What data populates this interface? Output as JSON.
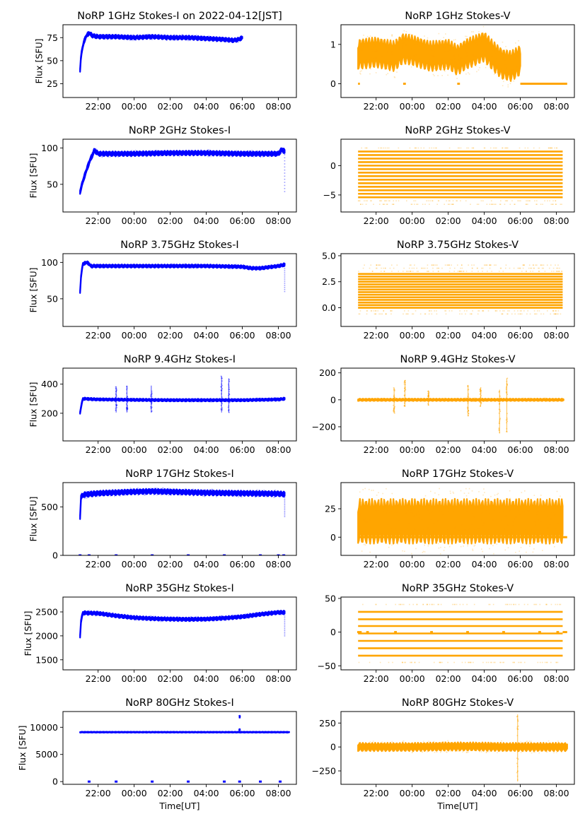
{
  "figure": {
    "layout": "7 rows x 2 columns",
    "colors": {
      "stokes_i": "#0000ff",
      "stokes_v": "#ffa500",
      "axes": "#000000",
      "background": "#ffffff"
    }
  },
  "chart_data": [
    {
      "type": "scatter",
      "panel": "1GHz-I",
      "title": "NoRP 1GHz Stokes-I on 2022-04-12[JST]",
      "xlabel": "",
      "ylabel": "Flux [SFU]",
      "xticks": [
        "22:00",
        "00:00",
        "02:00",
        "04:00",
        "06:00",
        "08:00"
      ],
      "xlim_hours": [
        20.05,
        33.0
      ],
      "yticks": [
        25,
        50,
        75
      ],
      "yticklabels": [
        "25",
        "50",
        "75"
      ],
      "ylim": [
        10,
        89
      ],
      "color": "#0000ff",
      "series": [
        {
          "name": "Stokes-I",
          "x_hours": [
            21.0,
            21.05,
            21.2,
            21.35,
            21.5,
            21.7,
            22.0,
            23.0,
            24.0,
            25.0,
            26.0,
            27.0,
            28.0,
            29.0,
            29.5,
            29.8,
            30.0
          ],
          "values": [
            40,
            55,
            70,
            77,
            80,
            77,
            76,
            76,
            75,
            76,
            75,
            75,
            74,
            73,
            72,
            73,
            75
          ],
          "spread": 2
        }
      ],
      "sparse": []
    },
    {
      "type": "scatter",
      "panel": "1GHz-V",
      "title": "NoRP 1GHz Stokes-V",
      "xlabel": "",
      "ylabel": "",
      "xticks": [
        "22:00",
        "00:00",
        "02:00",
        "04:00",
        "06:00",
        "08:00"
      ],
      "xlim_hours": [
        20.05,
        33.0
      ],
      "yticks": [
        0,
        1
      ],
      "yticklabels": [
        "0",
        "1"
      ],
      "ylim": [
        -0.35,
        1.5
      ],
      "color": "#ffa500",
      "series": [
        {
          "name": "Stokes-V",
          "x_hours": [
            21.0,
            22.0,
            23.0,
            23.5,
            24.0,
            25.0,
            26.0,
            26.5,
            27.0,
            28.0,
            28.5,
            29.0,
            29.5,
            30.0
          ],
          "values": [
            0.75,
            0.8,
            0.7,
            0.9,
            0.85,
            0.7,
            0.75,
            0.6,
            0.75,
            0.95,
            0.7,
            0.5,
            0.45,
            0.6
          ],
          "spread": 0.35
        }
      ],
      "baseline": {
        "value": 0,
        "segments_hours": [
          [
            21.0,
            21.1
          ],
          [
            23.5,
            23.65
          ],
          [
            26.5,
            26.65
          ],
          [
            30.0,
            32.6
          ]
        ]
      }
    },
    {
      "type": "scatter",
      "panel": "2GHz-I",
      "title": "NoRP 2GHz Stokes-I",
      "xlabel": "",
      "ylabel": "Flux [SFU]",
      "xticks": [
        "22:00",
        "00:00",
        "02:00",
        "04:00",
        "06:00",
        "08:00"
      ],
      "xlim_hours": [
        20.05,
        33.0
      ],
      "yticks": [
        50,
        100
      ],
      "yticklabels": [
        "50",
        "100"
      ],
      "ylim": [
        12,
        112
      ],
      "color": "#0000ff",
      "series": [
        {
          "name": "Stokes-I",
          "x_hours": [
            21.0,
            21.2,
            21.5,
            21.8,
            22.0,
            24.0,
            26.0,
            28.0,
            30.0,
            32.0,
            32.2,
            32.35
          ],
          "values": [
            40,
            58,
            80,
            97,
            92,
            92,
            93,
            93,
            92,
            92,
            98,
            95
          ],
          "spread": 3
        }
      ],
      "sparse": [
        {
          "x_hours": 32.35,
          "from": 40,
          "to": 95
        }
      ]
    },
    {
      "type": "scatter",
      "panel": "2GHz-V",
      "title": "NoRP 2GHz Stokes-V",
      "xlabel": "",
      "ylabel": "",
      "xticks": [
        "22:00",
        "00:00",
        "02:00",
        "04:00",
        "06:00",
        "08:00"
      ],
      "xlim_hours": [
        20.05,
        33.0
      ],
      "yticks": [
        -5,
        0
      ],
      "yticklabels": [
        "−5",
        "0"
      ],
      "ylim": [
        -7.9,
        4.5
      ],
      "color": "#ffa500",
      "quantized_levels": [
        -5.4,
        -4.8,
        -4.2,
        -3.6,
        -3.0,
        -2.4,
        -1.8,
        -1.2,
        -0.6,
        0.0,
        0.6,
        1.2,
        1.8,
        2.4
      ],
      "x_span_hours": [
        21.0,
        32.35
      ],
      "faint_levels": [
        -6.6,
        -6.0,
        3.0
      ]
    },
    {
      "type": "scatter",
      "panel": "3.75GHz-I",
      "title": "NoRP 3.75GHz Stokes-I",
      "xlabel": "",
      "ylabel": "Flux [SFU]",
      "xticks": [
        "22:00",
        "00:00",
        "02:00",
        "04:00",
        "06:00",
        "08:00"
      ],
      "xlim_hours": [
        20.05,
        33.0
      ],
      "yticks": [
        50,
        100
      ],
      "yticklabels": [
        "50",
        "100"
      ],
      "ylim": [
        12,
        112
      ],
      "color": "#0000ff",
      "series": [
        {
          "name": "Stokes-I",
          "x_hours": [
            21.0,
            21.05,
            21.15,
            21.4,
            21.6,
            22.0,
            24.0,
            26.0,
            28.0,
            30.0,
            30.5,
            31.0,
            32.0,
            32.35
          ],
          "values": [
            60,
            80,
            98,
            100,
            95,
            95,
            95,
            95,
            95,
            94,
            92,
            92,
            95,
            97
          ],
          "spread": 2
        }
      ],
      "sparse": [
        {
          "x_hours": 32.35,
          "from": 60,
          "to": 97
        }
      ]
    },
    {
      "type": "scatter",
      "panel": "3.75GHz-V",
      "title": "NoRP 3.75GHz Stokes-V",
      "xlabel": "",
      "ylabel": "",
      "xticks": [
        "22:00",
        "00:00",
        "02:00",
        "04:00",
        "06:00",
        "08:00"
      ],
      "xlim_hours": [
        20.05,
        33.0
      ],
      "yticks": [
        0.0,
        2.5,
        5.0
      ],
      "yticklabels": [
        "0.0",
        "2.5",
        "5.0"
      ],
      "ylim": [
        -1.8,
        5.2
      ],
      "color": "#ffa500",
      "quantized_levels": [
        0.0,
        0.25,
        0.5,
        0.75,
        1.0,
        1.25,
        1.5,
        1.75,
        2.0,
        2.25,
        2.5,
        2.75,
        3.0,
        3.25
      ],
      "x_span_hours": [
        21.0,
        32.35
      ],
      "faint_levels": [
        -0.3,
        -0.6,
        3.5,
        3.8,
        4.1
      ]
    },
    {
      "type": "scatter",
      "panel": "9.4GHz-I",
      "title": "NoRP 9.4GHz Stokes-I",
      "xlabel": "",
      "ylabel": "Flux [SFU]",
      "xticks": [
        "22:00",
        "00:00",
        "02:00",
        "04:00",
        "06:00",
        "08:00"
      ],
      "xlim_hours": [
        20.05,
        33.0
      ],
      "yticks": [
        200,
        400
      ],
      "yticklabels": [
        "200",
        "400"
      ],
      "ylim": [
        10,
        510
      ],
      "color": "#0000ff",
      "series": [
        {
          "name": "Stokes-I",
          "x_hours": [
            21.0,
            21.05,
            21.15,
            22.0,
            24.0,
            26.0,
            28.0,
            30.0,
            32.0,
            32.35
          ],
          "values": [
            205,
            240,
            300,
            295,
            292,
            290,
            290,
            290,
            295,
            300
          ],
          "spread": 8
        }
      ],
      "spikes": [
        {
          "x_hours": 23.0,
          "peak": 385
        },
        {
          "x_hours": 23.6,
          "peak": 390
        },
        {
          "x_hours": 24.95,
          "peak": 390
        },
        {
          "x_hours": 28.85,
          "peak": 455
        },
        {
          "x_hours": 29.25,
          "peak": 440
        }
      ]
    },
    {
      "type": "scatter",
      "panel": "9.4GHz-V",
      "title": "NoRP 9.4GHz Stokes-V",
      "xlabel": "",
      "ylabel": "",
      "xticks": [
        "22:00",
        "00:00",
        "02:00",
        "04:00",
        "06:00",
        "08:00"
      ],
      "xlim_hours": [
        20.05,
        33.0
      ],
      "yticks": [
        -200,
        0,
        200
      ],
      "yticklabels": [
        "−200",
        "0",
        "200"
      ],
      "ylim": [
        -305,
        235
      ],
      "color": "#ffa500",
      "series": [
        {
          "name": "Stokes-V",
          "x_hours": [
            21.0,
            32.4
          ],
          "values": [
            0,
            0
          ],
          "spread": 8
        }
      ],
      "spikes": [
        {
          "x_hours": 23.0,
          "peak": 90,
          "low": -100
        },
        {
          "x_hours": 23.6,
          "peak": 145,
          "low": -50
        },
        {
          "x_hours": 24.9,
          "peak": 70,
          "low": -40
        },
        {
          "x_hours": 27.1,
          "peak": 110,
          "low": -120
        },
        {
          "x_hours": 27.8,
          "peak": 90,
          "low": -50
        },
        {
          "x_hours": 28.85,
          "peak": 75,
          "low": -250
        },
        {
          "x_hours": 29.25,
          "peak": 160,
          "low": -240
        }
      ]
    },
    {
      "type": "scatter",
      "panel": "17GHz-I",
      "title": "NoRP 17GHz Stokes-I",
      "xlabel": "",
      "ylabel": "Flux [SFU]",
      "xticks": [
        "22:00",
        "00:00",
        "02:00",
        "04:00",
        "06:00",
        "08:00"
      ],
      "xlim_hours": [
        20.05,
        33.0
      ],
      "yticks": [
        0,
        500
      ],
      "yticklabels": [
        "0",
        "500"
      ],
      "ylim": [
        0,
        750
      ],
      "color": "#0000ff",
      "series": [
        {
          "name": "Stokes-I",
          "x_hours": [
            21.0,
            21.05,
            21.2,
            22.0,
            24.0,
            25.0,
            26.0,
            28.0,
            30.0,
            32.0,
            32.35
          ],
          "values": [
            400,
            600,
            625,
            640,
            655,
            660,
            655,
            645,
            640,
            635,
            630
          ],
          "spread": 25
        }
      ],
      "zero_markers_hours": [
        21.0,
        21.5,
        23.0,
        25.0,
        27.0,
        29.0,
        31.0,
        32.0,
        32.3
      ],
      "sparse": [
        {
          "x_hours": 32.35,
          "from": 400,
          "to": 630
        }
      ]
    },
    {
      "type": "scatter",
      "panel": "17GHz-V",
      "title": "NoRP 17GHz Stokes-V",
      "xlabel": "",
      "ylabel": "",
      "xticks": [
        "22:00",
        "00:00",
        "02:00",
        "04:00",
        "06:00",
        "08:00"
      ],
      "xlim_hours": [
        20.05,
        33.0
      ],
      "yticks": [
        0,
        25
      ],
      "yticklabels": [
        "0",
        "25"
      ],
      "ylim": [
        -16,
        48
      ],
      "color": "#ffa500",
      "series": [
        {
          "name": "Stokes-V",
          "x_hours": [
            21.0,
            32.35
          ],
          "values": [
            14,
            14
          ],
          "spread": 18
        }
      ],
      "baseline": {
        "value": 0,
        "segments_hours": [
          [
            21.0,
            32.6
          ]
        ]
      }
    },
    {
      "type": "scatter",
      "panel": "35GHz-I",
      "title": "NoRP 35GHz Stokes-I",
      "xlabel": "",
      "ylabel": "Flux [SFU]",
      "xticks": [
        "22:00",
        "00:00",
        "02:00",
        "04:00",
        "06:00",
        "08:00"
      ],
      "xlim_hours": [
        20.05,
        33.0
      ],
      "yticks": [
        1500,
        2000,
        2500
      ],
      "yticklabels": [
        "1500",
        "2000",
        "2500"
      ],
      "ylim": [
        1290,
        2810
      ],
      "color": "#0000ff",
      "series": [
        {
          "name": "Stokes-I",
          "x_hours": [
            21.0,
            21.05,
            21.15,
            22.0,
            23.0,
            24.0,
            25.0,
            26.0,
            27.0,
            28.0,
            29.0,
            30.0,
            31.0,
            32.0,
            32.35
          ],
          "values": [
            2000,
            2300,
            2480,
            2470,
            2420,
            2380,
            2360,
            2350,
            2345,
            2350,
            2370,
            2400,
            2450,
            2490,
            2490
          ],
          "spread": 35
        }
      ],
      "sparse": [
        {
          "x_hours": 32.35,
          "from": 2000,
          "to": 2490
        }
      ]
    },
    {
      "type": "scatter",
      "panel": "35GHz-V",
      "title": "NoRP 35GHz Stokes-V",
      "xlabel": "",
      "ylabel": "",
      "xticks": [
        "22:00",
        "00:00",
        "02:00",
        "04:00",
        "06:00",
        "08:00"
      ],
      "xlim_hours": [
        20.05,
        33.0
      ],
      "yticks": [
        -50,
        0,
        50
      ],
      "yticklabels": [
        "−50",
        "0",
        "50"
      ],
      "ylim": [
        -56,
        52
      ],
      "color": "#ffa500",
      "quantized_levels": [
        -35,
        -24,
        -13,
        -2,
        9,
        19,
        30
      ],
      "x_span_hours": [
        21.0,
        32.35
      ],
      "faint_levels": [
        -45,
        41
      ],
      "baseline": {
        "value": 0,
        "segments_hours": [
          [
            20.95,
            21.2
          ],
          [
            21.45,
            21.6
          ],
          [
            23.0,
            23.15
          ],
          [
            25.0,
            25.15
          ],
          [
            27.0,
            27.15
          ],
          [
            29.0,
            29.15
          ],
          [
            31.0,
            31.15
          ],
          [
            32.0,
            32.15
          ],
          [
            32.35,
            32.6
          ]
        ]
      }
    },
    {
      "type": "scatter",
      "panel": "80GHz-I",
      "title": "NoRP 80GHz Stokes-I",
      "xlabel": "Time[UT]",
      "ylabel": "Flux [SFU]",
      "xticks": [
        "22:00",
        "00:00",
        "02:00",
        "04:00",
        "06:00",
        "08:00"
      ],
      "xlim_hours": [
        20.05,
        33.0
      ],
      "yticks": [
        0,
        5000,
        10000
      ],
      "yticklabels": [
        "0",
        "5000",
        "10000"
      ],
      "ylim": [
        -500,
        12900
      ],
      "color": "#0000ff",
      "series": [
        {
          "name": "Stokes-I",
          "x_hours": [
            21.0,
            32.6
          ],
          "values": [
            9100,
            9100
          ],
          "spread": 80
        }
      ],
      "zero_markers_hours": [
        21.5,
        23.0,
        25.0,
        27.0,
        29.0,
        29.85,
        31.0,
        32.1
      ],
      "spikes": [
        {
          "x_hours": 29.85,
          "peak": 12200,
          "low": 11700
        },
        {
          "x_hours": 29.85,
          "peak": 9700,
          "low": 9400
        }
      ]
    },
    {
      "type": "scatter",
      "panel": "80GHz-V",
      "title": "NoRP 80GHz Stokes-V",
      "xlabel": "Time[UT]",
      "ylabel": "",
      "xticks": [
        "22:00",
        "00:00",
        "02:00",
        "04:00",
        "06:00",
        "08:00"
      ],
      "xlim_hours": [
        20.05,
        33.0
      ],
      "yticks": [
        -250,
        0,
        250
      ],
      "yticklabels": [
        "−250",
        "0",
        "250"
      ],
      "ylim": [
        -390,
        370
      ],
      "color": "#ffa500",
      "series": [
        {
          "name": "Stokes-V",
          "x_hours": [
            21.0,
            22.0,
            24.0,
            26.0,
            27.5,
            29.0,
            30.0,
            32.0,
            32.6
          ],
          "values": [
            0,
            0,
            0,
            5,
            5,
            0,
            0,
            0,
            0
          ],
          "spread": 40
        }
      ],
      "spikes": [
        {
          "x_hours": 29.85,
          "peak": 340,
          "low": -360
        }
      ]
    }
  ]
}
